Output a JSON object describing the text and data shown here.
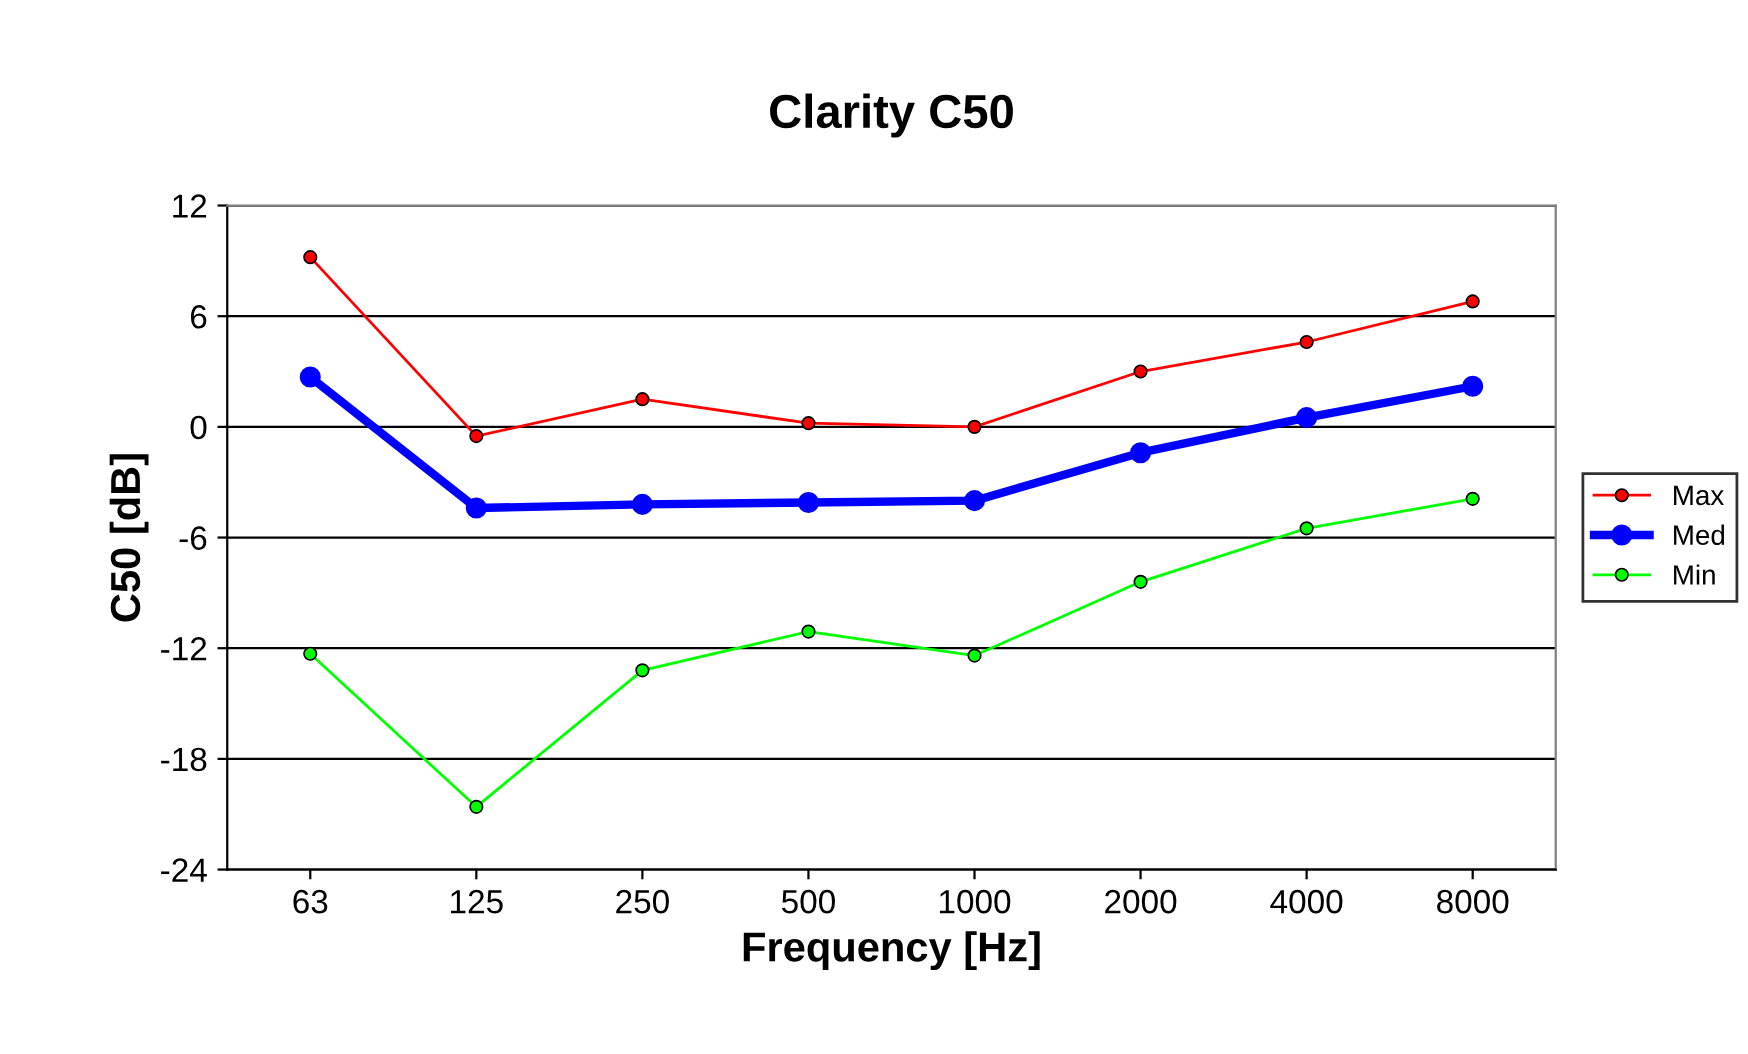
{
  "chart_data": {
    "type": "line",
    "title": "Clarity C50",
    "xlabel": "Frequency [Hz]",
    "ylabel": "C50 [dB]",
    "categories": [
      "63",
      "125",
      "250",
      "500",
      "1000",
      "2000",
      "4000",
      "8000"
    ],
    "series": [
      {
        "name": "Max",
        "color": "#ff0000",
        "values": [
          9.2,
          -0.5,
          1.5,
          0.2,
          0,
          3.0,
          4.6,
          6.8
        ]
      },
      {
        "name": "Med",
        "color": "#0000ff",
        "values": [
          2.7,
          -4.4,
          -4.2,
          -4.1,
          -4.0,
          -1.4,
          0.5,
          2.2
        ]
      },
      {
        "name": "Min",
        "color": "#00ff00",
        "values": [
          -12.3,
          -20.6,
          -13.2,
          -11.1,
          -12.4,
          -8.4,
          -5.5,
          -3.9
        ]
      }
    ],
    "ylim": [
      -24,
      12
    ],
    "yticks": [
      -24,
      -18,
      -12,
      -6,
      0,
      6,
      12
    ],
    "grid": "y",
    "legend": "right",
    "marker": "circle",
    "line_style": "solid"
  }
}
